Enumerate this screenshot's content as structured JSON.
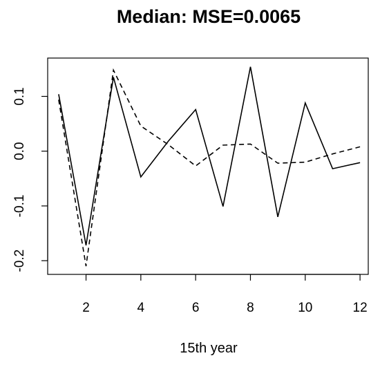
{
  "chart_data": {
    "type": "line",
    "title": "Median: MSE=0.0065",
    "xlabel": "15th year",
    "ylabel": "",
    "xlim": [
      0.6,
      12.3
    ],
    "ylim": [
      -0.225,
      0.17
    ],
    "x_ticks": [
      2,
      4,
      6,
      8,
      10,
      12
    ],
    "y_ticks": [
      -0.2,
      -0.1,
      0.0,
      0.1
    ],
    "x_tick_labels": [
      "2",
      "4",
      "6",
      "8",
      "10",
      "12"
    ],
    "y_tick_labels": [
      "-0.2",
      "-0.1",
      "0.0",
      "0.1"
    ],
    "grid": false,
    "legend": "none",
    "x": [
      1,
      2,
      3,
      4,
      5,
      6,
      7,
      8,
      9,
      10,
      11,
      12
    ],
    "series": [
      {
        "style": "solid",
        "color": "#000000",
        "values": [
          0.104,
          -0.172,
          0.135,
          -0.047,
          0.018,
          0.076,
          -0.101,
          0.154,
          -0.12,
          0.088,
          -0.032,
          -0.021
        ]
      },
      {
        "style": "dashed",
        "color": "#000000",
        "values": [
          0.094,
          -0.21,
          0.148,
          0.046,
          0.012,
          -0.027,
          0.011,
          0.013,
          -0.022,
          -0.02,
          -0.005,
          0.008
        ]
      }
    ]
  }
}
